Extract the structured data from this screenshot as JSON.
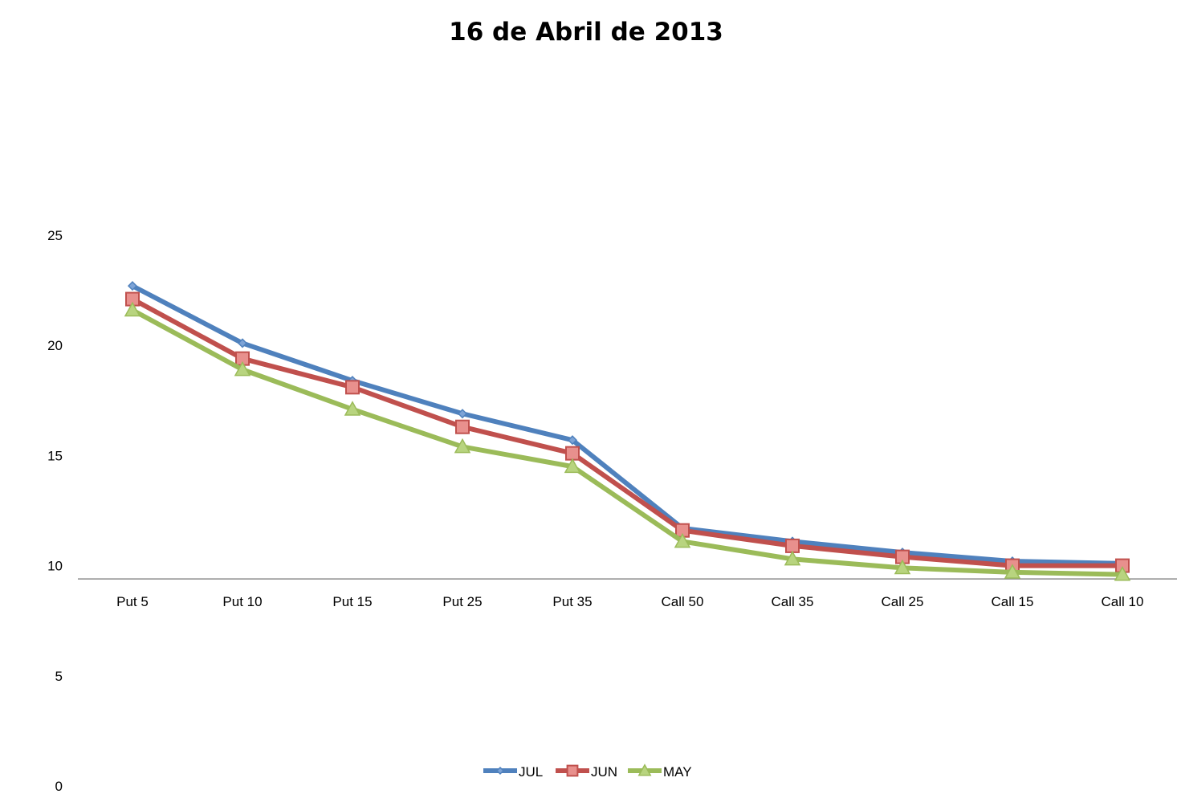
{
  "chart_data": {
    "type": "line",
    "title": "16 de Abril de 2013",
    "xlabel": "",
    "ylabel": "",
    "categories": [
      "Put 5",
      "Put 10",
      "Put 15",
      "Put 25",
      "Put 35",
      "Call 50",
      "Call 35",
      "Call 25",
      "Call 15",
      "Call 10"
    ],
    "ylim": [
      0,
      25
    ],
    "yticks": [
      "0",
      "5",
      "10",
      "15",
      "20",
      "25"
    ],
    "category_axis_crosses_at": 9.4,
    "grid": false,
    "legend_position": "bottom",
    "series": [
      {
        "name": "JUL",
        "color": "#4f81bd",
        "marker": "diamond",
        "values": [
          22.7,
          20.1,
          18.4,
          16.9,
          15.7,
          11.7,
          11.1,
          10.6,
          10.2,
          10.1
        ]
      },
      {
        "name": "JUN",
        "color": "#c0504d",
        "marker": "square",
        "values": [
          22.1,
          19.4,
          18.1,
          16.3,
          15.1,
          11.6,
          10.9,
          10.4,
          10.0,
          10.0
        ]
      },
      {
        "name": "MAY",
        "color": "#9bbb59",
        "marker": "triangle",
        "values": [
          21.6,
          18.9,
          17.1,
          15.4,
          14.5,
          11.1,
          10.3,
          9.9,
          9.7,
          9.6
        ]
      }
    ]
  }
}
